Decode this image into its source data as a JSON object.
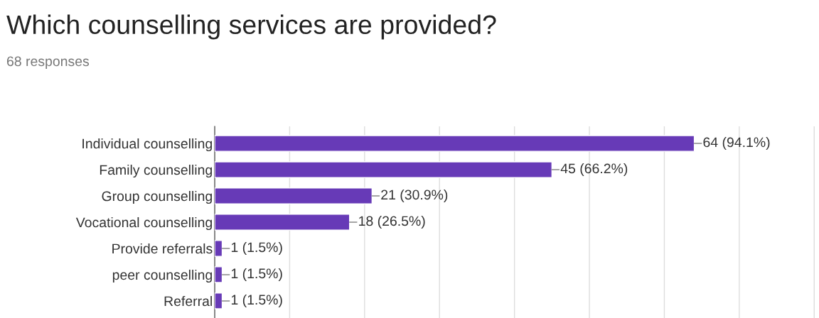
{
  "chart_data": {
    "type": "bar",
    "orientation": "horizontal",
    "title": "Which counselling services are provided?",
    "subtitle": "68 responses",
    "categories": [
      "Individual counselling",
      "Family counselling",
      "Group counselling",
      "Vocational counselling",
      "Provide referrals",
      "peer counselling",
      "Referral"
    ],
    "values": [
      64,
      45,
      21,
      18,
      1,
      1,
      1
    ],
    "value_labels": [
      "64 (94.1%)",
      "45 (66.2%)",
      "21 (30.9%)",
      "18 (26.5%)",
      "1 (1.5%)",
      "1 (1.5%)",
      "1 (1.5%)"
    ],
    "color": "#673ab7",
    "grid": "x",
    "tick_labels": "y"
  }
}
